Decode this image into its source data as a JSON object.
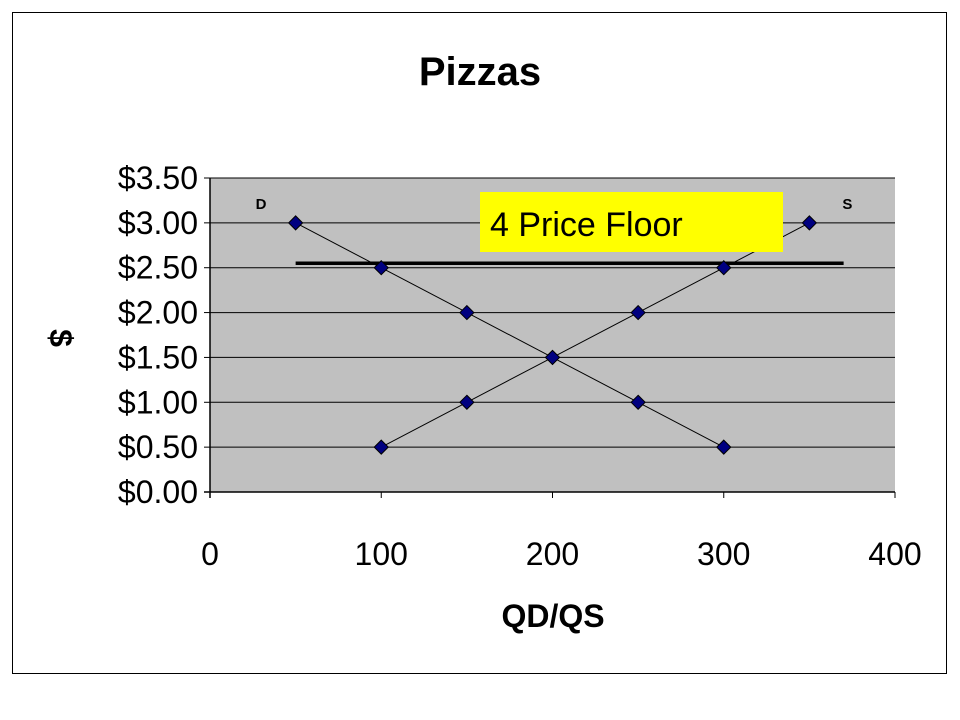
{
  "chart_data": {
    "type": "line",
    "title": "Pizzas",
    "xlabel": "QD/QS",
    "ylabel": "$",
    "xlim": [
      0,
      400
    ],
    "ylim": [
      0,
      3.5
    ],
    "x_ticks": [
      0,
      100,
      200,
      300,
      400
    ],
    "x_tick_labels": [
      "0",
      "100",
      "200",
      "300",
      "400"
    ],
    "y_ticks": [
      0,
      0.5,
      1.0,
      1.5,
      2.0,
      2.5,
      3.0,
      3.5
    ],
    "y_tick_labels": [
      "$0.00",
      "$0.50",
      "$1.00",
      "$1.50",
      "$2.00",
      "$2.50",
      "$3.00",
      "$3.50"
    ],
    "grid": true,
    "series": [
      {
        "name": "D",
        "points": [
          [
            50,
            3.0
          ],
          [
            100,
            2.5
          ],
          [
            150,
            2.0
          ],
          [
            200,
            1.5
          ],
          [
            250,
            1.0
          ],
          [
            300,
            0.5
          ]
        ]
      },
      {
        "name": "S",
        "points": [
          [
            100,
            0.5
          ],
          [
            150,
            1.0
          ],
          [
            200,
            1.5
          ],
          [
            250,
            2.0
          ],
          [
            300,
            2.5
          ],
          [
            350,
            3.0
          ]
        ]
      }
    ],
    "price_floor": {
      "value": 2.55,
      "x_range": [
        50,
        370
      ]
    },
    "annotation": {
      "text": "4 Price Floor"
    },
    "colors": {
      "plot_bg": "#c0c0c0",
      "marker": "#000080",
      "annotation_bg": "#ffff00",
      "line": "#000000"
    }
  }
}
